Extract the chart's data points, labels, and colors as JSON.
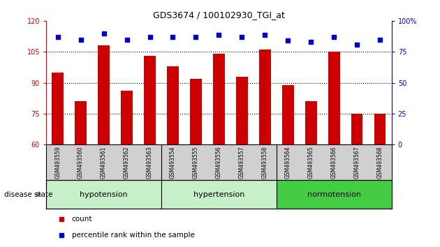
{
  "title": "GDS3674 / 100102930_TGI_at",
  "categories": [
    "GSM493559",
    "GSM493560",
    "GSM493561",
    "GSM493562",
    "GSM493563",
    "GSM493554",
    "GSM493555",
    "GSM493556",
    "GSM493557",
    "GSM493558",
    "GSM493564",
    "GSM493565",
    "GSM493566",
    "GSM493567",
    "GSM493568"
  ],
  "red_values": [
    95,
    81,
    108,
    86,
    103,
    98,
    92,
    104,
    93,
    106,
    89,
    81,
    105,
    75,
    75
  ],
  "blue_percentiles": [
    87,
    85,
    90,
    85,
    87,
    87,
    87,
    89,
    87,
    89,
    84,
    83,
    87,
    81,
    85
  ],
  "ylim_left": [
    60,
    120
  ],
  "ylim_right": [
    0,
    100
  ],
  "yticks_left": [
    60,
    75,
    90,
    105,
    120
  ],
  "yticks_right": [
    0,
    25,
    50,
    75,
    100
  ],
  "ytick_labels_right": [
    "0",
    "25",
    "50",
    "75",
    "100%"
  ],
  "red_color": "#cc0000",
  "blue_color": "#0000cc",
  "bar_width": 0.5,
  "groups": [
    {
      "label": "hypotension",
      "start": 0,
      "end": 5,
      "color": "#c8f0c8"
    },
    {
      "label": "hypertension",
      "start": 5,
      "end": 10,
      "color": "#c8f0c8"
    },
    {
      "label": "normotension",
      "start": 10,
      "end": 15,
      "color": "#44cc44"
    }
  ],
  "xtick_bg_color": "#d0d0d0",
  "disease_state_label": "disease state",
  "legend_count": "count",
  "legend_percentile": "percentile rank within the sample"
}
